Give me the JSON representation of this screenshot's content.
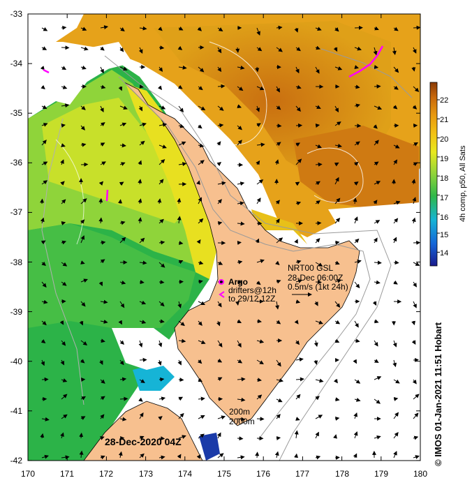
{
  "map": {
    "lon_ticks": [
      "170",
      "171",
      "172",
      "173",
      "174",
      "175",
      "176",
      "177",
      "178",
      "179",
      "180"
    ],
    "lat_ticks": [
      "-33",
      "-34",
      "-35",
      "-36",
      "-37",
      "-38",
      "-39",
      "-40",
      "-41",
      "-42"
    ],
    "date_label": "28-Dec-2020 04Z",
    "bathymetry_legend": [
      "200m",
      "2000m"
    ],
    "argo": {
      "title": "Argo",
      "line1": "drifters@12h",
      "line2": "to 29/12 12Z",
      "marker_color": "#ff00ff"
    },
    "current": {
      "line1": "NRT00 GSL",
      "line2": "28-Dec 06:00Z",
      "line3": "0.5m/s (1kt 24h)"
    },
    "credit": "© IMOS 01-Jan-2021 11:51 Hobart"
  },
  "colorbar": {
    "label": "4h comp, p50, All Sats",
    "ticks": [
      "22",
      "21",
      "20",
      "19",
      "18",
      "17",
      "16",
      "15",
      "14"
    ]
  },
  "colors": {
    "land": "#f7c08f",
    "warm": "#d98a14",
    "mid": "#e6c516",
    "cool": "#7fd03a",
    "cold": "#2bb44a",
    "argo": "#ff00ff"
  }
}
